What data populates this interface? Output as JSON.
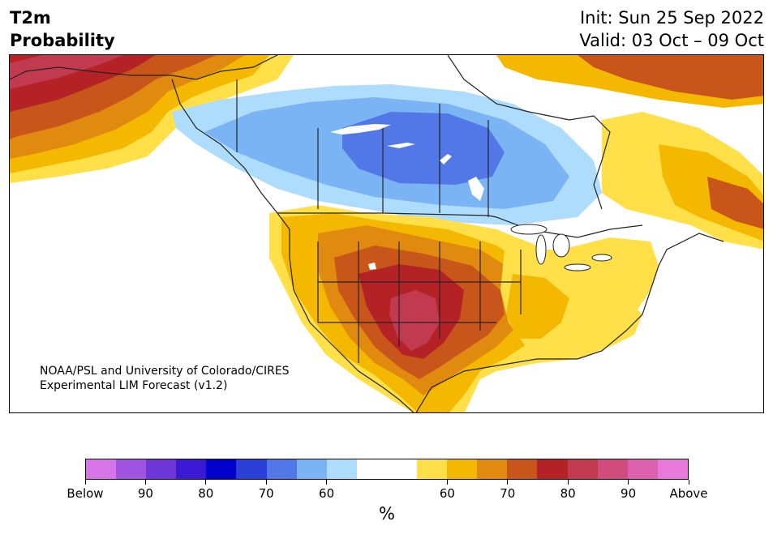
{
  "title": {
    "left_line1": "T2m",
    "left_line2": "Probability",
    "right_line1": "Init: Sun 25 Sep 2022",
    "right_line2": "Valid: 03 Oct – 09 Oct"
  },
  "credit": {
    "line1": "NOAA/PSL and University of Colorado/CIRES",
    "line2": "Experimental LIM Forecast (v1.2)"
  },
  "colorbar": {
    "colors": [
      "#d674e8",
      "#a054e2",
      "#6e36d8",
      "#3a18d4",
      "#0000cc",
      "#2a3ed8",
      "#5278e8",
      "#7ab4f4",
      "#aedcfc",
      "#ffffff",
      "#ffffff",
      "#ffe048",
      "#f4b800",
      "#e08a10",
      "#c8561a",
      "#b42226",
      "#c23a50",
      "#d04c7c",
      "#dc62b0",
      "#e878dc"
    ],
    "labels": [
      "Below",
      "90",
      "80",
      "70",
      "60",
      "60",
      "70",
      "80",
      "90",
      "Above"
    ],
    "unit": "%"
  },
  "map": {
    "colors": {
      "above_90": "#c23a50",
      "above_80": "#b42226",
      "above_70": "#c8561a",
      "above_65": "#e08a10",
      "above_60": "#f4b800",
      "above_55": "#ffe048",
      "below_55": "#aedcfc",
      "below_60": "#7ab4f4",
      "below_65": "#5278e8",
      "ocean": "#ffffff",
      "coast": "#222222"
    }
  }
}
